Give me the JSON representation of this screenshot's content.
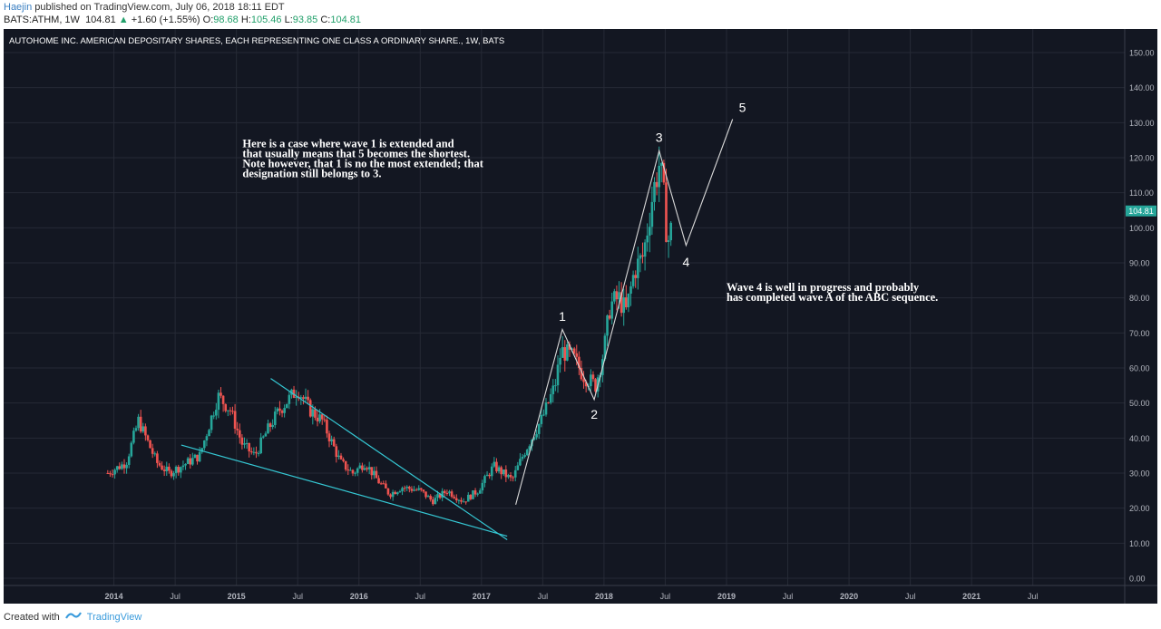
{
  "header": {
    "author": "Haejin",
    "published": "published on TradingView.com, July 06, 2018 18:11 EDT",
    "symbol": "BATS:ATHM, 1W",
    "last": "104.81",
    "change": "+1.60 (+1.55%)",
    "open_label": "O:",
    "open": "98.68",
    "high_label": "H:",
    "high": "105.46",
    "low_label": "L:",
    "low": "93.85",
    "close_label": "C:",
    "close": "104.81"
  },
  "footer": {
    "created_with": "Created with",
    "brand": "TradingView"
  },
  "colors": {
    "background": "#131722",
    "grid": "#262a36",
    "up": "#26a69a",
    "down": "#ef5350",
    "trendline": "#35c8d4",
    "wave_line": "#d8d8d8",
    "text": "#ffffff",
    "axis_text": "#b2b5be",
    "price_badge": "#26a69a"
  },
  "chart_data": {
    "type": "candlestick",
    "title": "AUTOHOME INC. AMERICAN DEPOSITARY SHARES, EACH REPRESENTING ONE CLASS A ORDINARY SHARE., 1W, BATS",
    "y_ticks": [
      "150.00",
      "140.00",
      "130.00",
      "120.00",
      "110.00",
      "100.00",
      "90.00",
      "80.00",
      "70.00",
      "60.00",
      "50.00",
      "40.00",
      "30.00",
      "20.00",
      "10.00",
      "0.00"
    ],
    "x_ticks": [
      "2014",
      "Jul",
      "2015",
      "Jul",
      "2016",
      "Jul",
      "2017",
      "Jul",
      "2018",
      "Jul",
      "2019",
      "Jul",
      "2020",
      "Jul",
      "2021",
      "Jul"
    ],
    "ylim": [
      0,
      150
    ],
    "xlim": [
      2013.1,
      2022.25
    ],
    "last_price": "104.81",
    "anchors": [
      [
        2013.95,
        30
      ],
      [
        2014.1,
        33
      ],
      [
        2014.2,
        45
      ],
      [
        2014.35,
        33
      ],
      [
        2014.45,
        30
      ],
      [
        2014.6,
        33
      ],
      [
        2014.7,
        35
      ],
      [
        2014.85,
        52
      ],
      [
        2014.95,
        48
      ],
      [
        2015.05,
        38
      ],
      [
        2015.15,
        35
      ],
      [
        2015.25,
        42
      ],
      [
        2015.35,
        48
      ],
      [
        2015.5,
        54
      ],
      [
        2015.6,
        48
      ],
      [
        2015.7,
        45
      ],
      [
        2015.85,
        33
      ],
      [
        2015.95,
        30
      ],
      [
        2016.05,
        33
      ],
      [
        2016.15,
        28
      ],
      [
        2016.25,
        24
      ],
      [
        2016.35,
        26
      ],
      [
        2016.5,
        25
      ],
      [
        2016.6,
        22
      ],
      [
        2016.72,
        25
      ],
      [
        2016.85,
        22
      ],
      [
        2016.97,
        25
      ],
      [
        2017.1,
        32
      ],
      [
        2017.25,
        28
      ],
      [
        2017.35,
        36
      ],
      [
        2017.5,
        46
      ],
      [
        2017.6,
        55
      ],
      [
        2017.65,
        65
      ],
      [
        2017.75,
        63
      ],
      [
        2017.83,
        58
      ],
      [
        2017.93,
        55
      ],
      [
        2018.0,
        65
      ],
      [
        2018.05,
        78
      ],
      [
        2018.12,
        80
      ],
      [
        2018.18,
        76
      ],
      [
        2018.25,
        88
      ],
      [
        2018.32,
        92
      ],
      [
        2018.4,
        110
      ],
      [
        2018.45,
        118
      ],
      [
        2018.48,
        112
      ],
      [
        2018.52,
        95
      ],
      [
        2018.56,
        104.81
      ]
    ],
    "wave_path": [
      [
        2017.28,
        21
      ],
      [
        2017.66,
        71
      ],
      [
        2017.92,
        51
      ],
      [
        2018.45,
        122
      ],
      [
        2018.67,
        95
      ],
      [
        2019.05,
        131
      ]
    ],
    "trendline_upper": [
      [
        2015.28,
        57
      ],
      [
        2017.21,
        11
      ]
    ],
    "trendline_lower": [
      [
        2014.55,
        38
      ],
      [
        2017.21,
        12
      ]
    ],
    "wave_labels": [
      {
        "text": "1",
        "x": 2017.66,
        "y": 73.5
      },
      {
        "text": "2",
        "x": 2017.92,
        "y": 45.5
      },
      {
        "text": "3",
        "x": 2018.45,
        "y": 124.5
      },
      {
        "text": "4",
        "x": 2018.67,
        "y": 89
      },
      {
        "text": "5",
        "x": 2019.13,
        "y": 133
      }
    ],
    "annotations": [
      {
        "lines": [
          "Here is a case where wave 1 is extended and",
          "that usually means that 5 becomes the shortest.",
          "Note however, that 1 is no the most extended; that",
          "designation still belongs to 3."
        ],
        "x": 2015.05,
        "y": 123
      },
      {
        "lines": [
          "Wave 4 is well in progress and probably",
          "has completed wave A of the ABC sequence."
        ],
        "x": 2019.0,
        "y": 82
      }
    ]
  }
}
